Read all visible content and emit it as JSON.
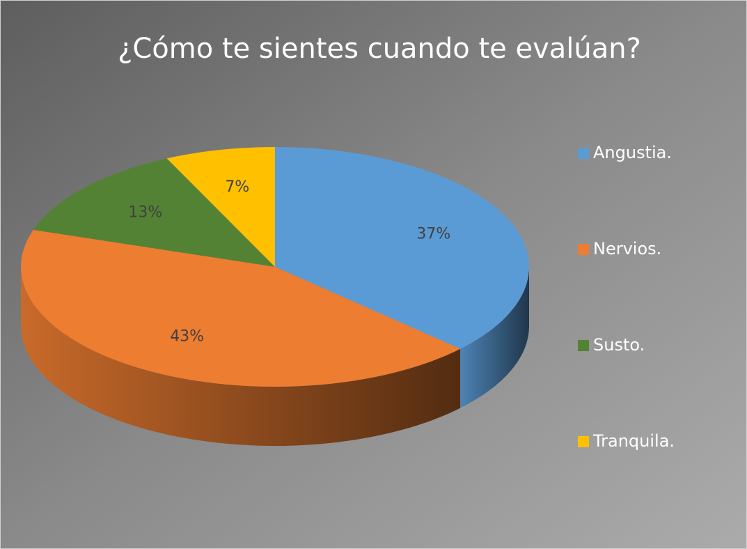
{
  "chart_data": {
    "type": "pie",
    "title": "¿Cómo te sientes cuando te evalúan?",
    "categories": [
      "Angustia.",
      "Nervios.",
      "Susto.",
      "Tranquila."
    ],
    "values": [
      37,
      43,
      13,
      7
    ],
    "value_labels": [
      "37%",
      "43%",
      "13%",
      "7%"
    ],
    "colors": [
      "#5b9bd5",
      "#ed7d31",
      "#548235",
      "#ffc000"
    ],
    "legend": "right"
  }
}
